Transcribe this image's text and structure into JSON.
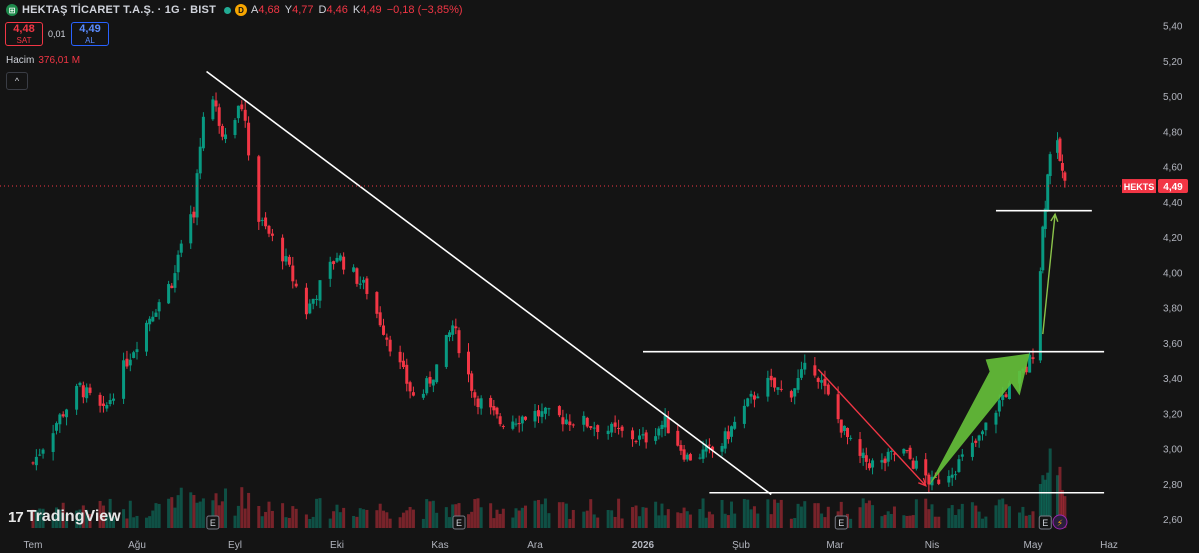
{
  "header": {
    "symbol": "HEKTAŞ TİCARET T.A.Ş. · 1G · BIST",
    "d_badge": "D",
    "ohlc": [
      {
        "k": "A",
        "v": "4,68"
      },
      {
        "k": "Y",
        "v": "4,77"
      },
      {
        "k": "D",
        "v": "4,46"
      },
      {
        "k": "K",
        "v": "4,49"
      },
      {
        "k": "",
        "v": "−0,18 (−3,85%)"
      }
    ]
  },
  "trade": {
    "sell_price": "4,48",
    "sell_label": "SAT",
    "spread": "0,01",
    "buy_price": "4,49",
    "buy_label": "AL"
  },
  "volume_legend": {
    "label": "Hacim",
    "value": "376,01 M"
  },
  "collapse_icon": "^",
  "branding": {
    "logo_mark": "17",
    "name": "TradingView"
  },
  "chart_data": {
    "type": "candlestick",
    "symbol": "HEKTS",
    "last_price": 4.49,
    "last_price_label": "HEKTS",
    "last_price_text": "4,49",
    "price_ylim": [
      2.55,
      5.5
    ],
    "y_ticks": [
      "5,40",
      "5,20",
      "5,00",
      "4,80",
      "4,60",
      "4,40",
      "4,20",
      "4,00",
      "3,80",
      "3,60",
      "3,40",
      "3,20",
      "3,00",
      "2,80",
      "2,60"
    ],
    "y_tick_values": [
      5.4,
      5.2,
      5.0,
      4.8,
      4.6,
      4.4,
      4.2,
      4.0,
      3.8,
      3.6,
      3.4,
      3.2,
      3.0,
      2.8,
      2.6
    ],
    "x_ticks": [
      "Tem",
      "Ağu",
      "Eyl",
      "Eki",
      "Kas",
      "Ara",
      "2026",
      "Şub",
      "Mar",
      "Nis",
      "May",
      "Haz"
    ],
    "x_tick_dates": [
      "2025-07-01",
      "2025-08-01",
      "2025-09-01",
      "2025-10-01",
      "2025-11-01",
      "2025-12-01",
      "2026-01-01",
      "2026-02-01",
      "2026-03-01",
      "2026-04-01",
      "2026-05-01",
      "2026-06-01"
    ],
    "closes": [
      {
        "date": "2025-07-01",
        "close": 2.92
      },
      {
        "date": "2025-07-08",
        "close": 3.15
      },
      {
        "date": "2025-07-15",
        "close": 3.35
      },
      {
        "date": "2025-07-22",
        "close": 3.2
      },
      {
        "date": "2025-07-29",
        "close": 3.5
      },
      {
        "date": "2025-08-05",
        "close": 3.75
      },
      {
        "date": "2025-08-12",
        "close": 3.95
      },
      {
        "date": "2025-08-19",
        "close": 4.35
      },
      {
        "date": "2025-08-23",
        "close": 5.1
      },
      {
        "date": "2025-08-28",
        "close": 4.8
      },
      {
        "date": "2025-09-03",
        "close": 4.95
      },
      {
        "date": "2025-09-08",
        "close": 4.3
      },
      {
        "date": "2025-09-15",
        "close": 4.1
      },
      {
        "date": "2025-09-22",
        "close": 3.78
      },
      {
        "date": "2025-10-01",
        "close": 4.1
      },
      {
        "date": "2025-10-10",
        "close": 3.9
      },
      {
        "date": "2025-10-18",
        "close": 3.55
      },
      {
        "date": "2025-10-25",
        "close": 3.25
      },
      {
        "date": "2025-11-01",
        "close": 3.5
      },
      {
        "date": "2025-11-05",
        "close": 3.7
      },
      {
        "date": "2025-11-12",
        "close": 3.3
      },
      {
        "date": "2025-11-20",
        "close": 3.15
      },
      {
        "date": "2025-12-01",
        "close": 3.2
      },
      {
        "date": "2025-12-15",
        "close": 3.15
      },
      {
        "date": "2026-01-01",
        "close": 3.05
      },
      {
        "date": "2026-01-08",
        "close": 3.15
      },
      {
        "date": "2026-01-15",
        "close": 2.95
      },
      {
        "date": "2026-01-25",
        "close": 3.0
      },
      {
        "date": "2026-02-01",
        "close": 3.2
      },
      {
        "date": "2026-02-08",
        "close": 3.38
      },
      {
        "date": "2026-02-15",
        "close": 3.3
      },
      {
        "date": "2026-02-22",
        "close": 3.5
      },
      {
        "date": "2026-03-01",
        "close": 3.2
      },
      {
        "date": "2026-03-08",
        "close": 2.95
      },
      {
        "date": "2026-03-15",
        "close": 2.9
      },
      {
        "date": "2026-03-22",
        "close": 3.0
      },
      {
        "date": "2026-04-01",
        "close": 2.8
      },
      {
        "date": "2026-04-08",
        "close": 2.9
      },
      {
        "date": "2026-04-15",
        "close": 3.05
      },
      {
        "date": "2026-04-22",
        "close": 3.3
      },
      {
        "date": "2026-04-29",
        "close": 3.45
      },
      {
        "date": "2026-05-02",
        "close": 3.6
      },
      {
        "date": "2026-05-05",
        "close": 4.25
      },
      {
        "date": "2026-05-09",
        "close": 4.85
      },
      {
        "date": "2026-05-14",
        "close": 4.49
      }
    ],
    "annotations": [
      {
        "kind": "trendline",
        "color": "#ffffff",
        "points": [
          {
            "date": "2025-08-23",
            "price": 5.14
          },
          {
            "date": "2026-02-10",
            "price": 2.74
          }
        ]
      },
      {
        "kind": "hline",
        "color": "#ffffff",
        "price": 3.55,
        "from": "2026-01-01",
        "to": "2026-05-30"
      },
      {
        "kind": "hline",
        "color": "#ffffff",
        "price": 2.75,
        "from": "2026-01-22",
        "to": "2026-05-30"
      },
      {
        "kind": "hline",
        "color": "#ffffff",
        "price": 4.35,
        "from": "2026-04-20",
        "to": "2026-05-25"
      },
      {
        "kind": "arrow",
        "color": "#f23645",
        "from": {
          "date": "2026-02-24",
          "price": 3.45
        },
        "to": {
          "date": "2026-03-30",
          "price": 2.79
        }
      },
      {
        "kind": "arrow",
        "color": "#8bc34a",
        "from": {
          "date": "2026-05-05",
          "price": 3.65
        },
        "to": {
          "date": "2026-05-10",
          "price": 4.33
        }
      },
      {
        "kind": "wedge",
        "color": "#66c23a",
        "from": {
          "date": "2026-03-31",
          "price": 2.79
        },
        "to": {
          "date": "2026-04-30",
          "price": 3.54
        }
      }
    ],
    "earnings_markers": [
      "2025-08-25",
      "2025-11-07",
      "2026-03-03",
      "2026-05-06"
    ],
    "earnings_label": "E",
    "dividend_marker": {
      "date": "2026-05-12",
      "label": "⚡"
    },
    "volume_peak_date": "2026-05-09"
  }
}
